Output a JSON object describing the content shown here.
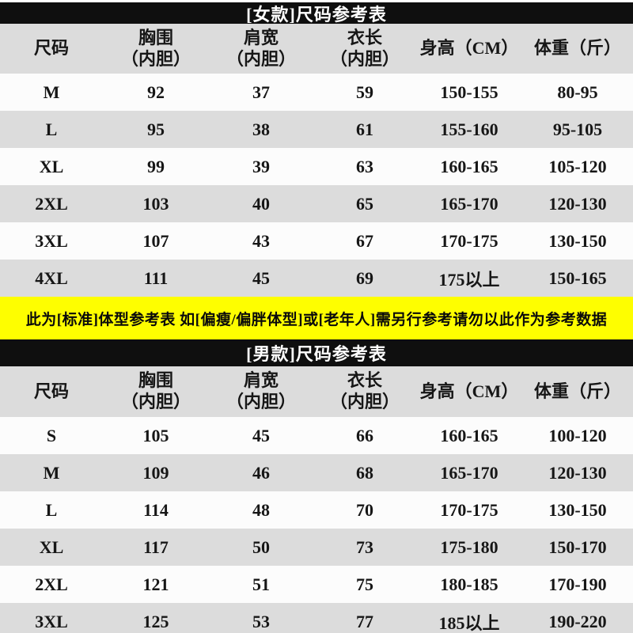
{
  "colors": {
    "title_bar_bg": "#0f0f0f",
    "title_bar_text": "#ffffff",
    "header_row_bg": "#dcdcdc",
    "row_gray_bg": "#dcdcdc",
    "row_white_bg": "#fcfcfc",
    "notice_bg": "#fefe00",
    "body_text": "#161616"
  },
  "notice": {
    "text": "此为[标准]体型参考表 如[偏瘦/偏胖体型]或[老年人]需另行参考请勿以此作为参考数据"
  },
  "women_table": {
    "title": "[女款]尺码参考表",
    "columns": [
      {
        "line1": "尺码",
        "line2": ""
      },
      {
        "line1": "胸围",
        "line2": "（内胆）"
      },
      {
        "line1": "肩宽",
        "line2": "（内胆）"
      },
      {
        "line1": "衣长",
        "line2": "（内胆）"
      },
      {
        "line1": "身高（CM）",
        "line2": ""
      },
      {
        "line1": "体重（斤）",
        "line2": ""
      }
    ],
    "rows": [
      {
        "size": "M",
        "chest": "92",
        "shoulder": "37",
        "length": "59",
        "height": "150-155",
        "weight": "80-95"
      },
      {
        "size": "L",
        "chest": "95",
        "shoulder": "38",
        "length": "61",
        "height": "155-160",
        "weight": "95-105"
      },
      {
        "size": "XL",
        "chest": "99",
        "shoulder": "39",
        "length": "63",
        "height": "160-165",
        "weight": "105-120"
      },
      {
        "size": "2XL",
        "chest": "103",
        "shoulder": "40",
        "length": "65",
        "height": "165-170",
        "weight": "120-130"
      },
      {
        "size": "3XL",
        "chest": "107",
        "shoulder": "43",
        "length": "67",
        "height": "170-175",
        "weight": "130-150"
      },
      {
        "size": "4XL",
        "chest": "111",
        "shoulder": "45",
        "length": "69",
        "height": "175以上",
        "weight": "150-165"
      }
    ]
  },
  "men_table": {
    "title": "[男款]尺码参考表",
    "columns": [
      {
        "line1": "尺码",
        "line2": ""
      },
      {
        "line1": "胸围",
        "line2": "（内胆）"
      },
      {
        "line1": "肩宽",
        "line2": "（内胆）"
      },
      {
        "line1": "衣长",
        "line2": "（内胆）"
      },
      {
        "line1": "身高（CM）",
        "line2": ""
      },
      {
        "line1": "体重（斤）",
        "line2": ""
      }
    ],
    "rows": [
      {
        "size": "S",
        "chest": "105",
        "shoulder": "45",
        "length": "66",
        "height": "160-165",
        "weight": "100-120"
      },
      {
        "size": "M",
        "chest": "109",
        "shoulder": "46",
        "length": "68",
        "height": "165-170",
        "weight": "120-130"
      },
      {
        "size": "L",
        "chest": "114",
        "shoulder": "48",
        "length": "70",
        "height": "170-175",
        "weight": "130-150"
      },
      {
        "size": "XL",
        "chest": "117",
        "shoulder": "50",
        "length": "73",
        "height": "175-180",
        "weight": "150-170"
      },
      {
        "size": "2XL",
        "chest": "121",
        "shoulder": "51",
        "length": "75",
        "height": "180-185",
        "weight": "170-190"
      },
      {
        "size": "3XL",
        "chest": "125",
        "shoulder": "53",
        "length": "77",
        "height": "185以上",
        "weight": "190-220"
      }
    ]
  }
}
